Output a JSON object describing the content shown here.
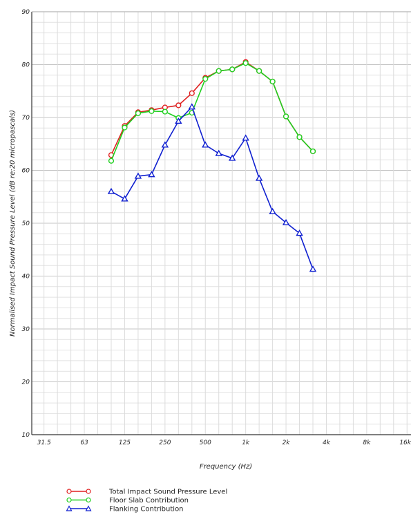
{
  "chart_data": {
    "type": "line",
    "xlabel": "Frequency (Hz)",
    "ylabel": "Normalised Impact Sound Pressure Level (dB re:20 micropascals)",
    "ylim": [
      10,
      90
    ],
    "y_ticks": [
      "10",
      "20",
      "30",
      "40",
      "50",
      "60",
      "70",
      "80",
      "90"
    ],
    "x_tick_labels": [
      "31.5",
      "63",
      "125",
      "250",
      "500",
      "1k",
      "2k",
      "4k",
      "8k",
      "16k"
    ],
    "x": [
      "100",
      "125",
      "160",
      "200",
      "250",
      "315",
      "400",
      "500",
      "630",
      "800",
      "1000",
      "1250",
      "1600",
      "2000",
      "2500",
      "3150"
    ],
    "grid": true,
    "legend_position": "bottom-left",
    "series": [
      {
        "name": "Total Impact Sound Pressure Level",
        "color": "#e02020",
        "marker": "circle",
        "values": [
          62.9,
          68.4,
          71.0,
          71.4,
          71.9,
          72.3,
          74.6,
          77.5,
          78.8,
          79.1,
          80.5,
          78.8,
          76.8,
          70.2,
          66.3,
          63.6
        ]
      },
      {
        "name": "Floor Slab Contribution",
        "color": "#20d020",
        "marker": "circle",
        "values": [
          61.8,
          68.1,
          70.8,
          71.2,
          71.1,
          69.9,
          70.9,
          77.3,
          78.8,
          79.1,
          80.3,
          78.8,
          76.8,
          70.2,
          66.3,
          63.6
        ]
      },
      {
        "name": "Flanking Contribution",
        "color": "#1020d0",
        "marker": "triangle",
        "values": [
          56.0,
          54.6,
          58.9,
          59.2,
          64.8,
          69.3,
          72.0,
          64.8,
          63.2,
          62.3,
          66.1,
          58.5,
          52.2,
          50.1,
          48.1,
          41.3
        ]
      }
    ]
  }
}
